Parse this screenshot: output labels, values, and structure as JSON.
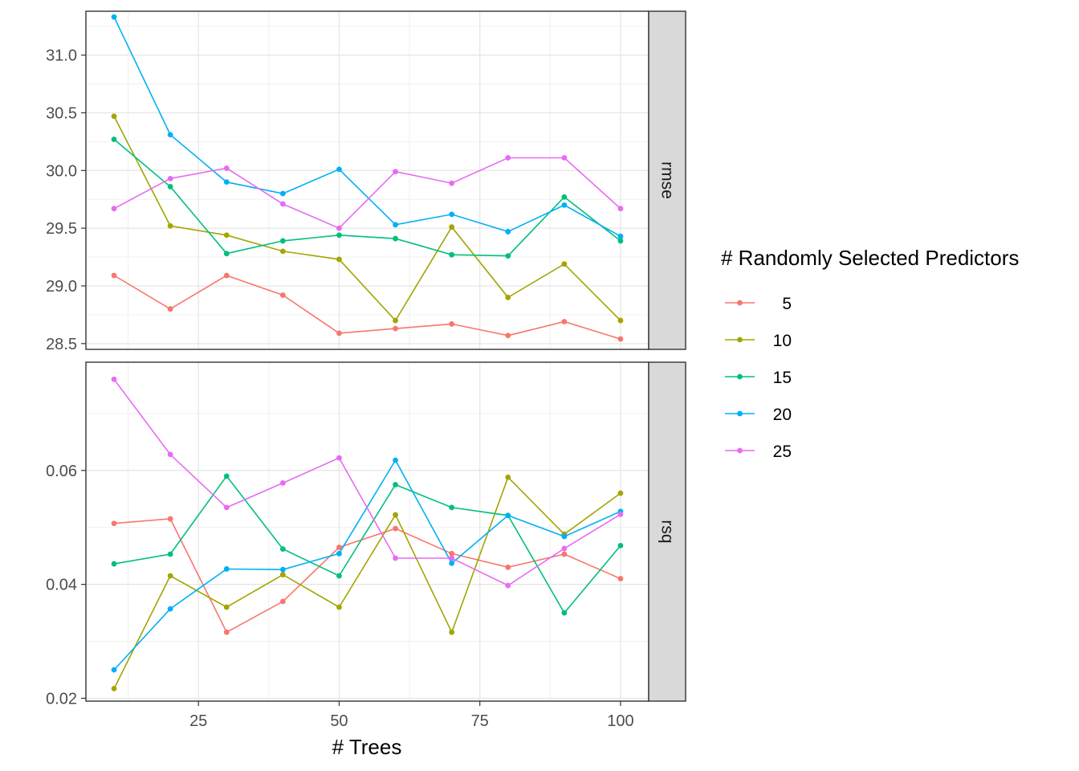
{
  "chart_data": {
    "type": "line",
    "xlabel": "# Trees",
    "legend_title": "# Randomly Selected Predictors",
    "legend_position": "right",
    "grid": true,
    "x": [
      10,
      20,
      30,
      40,
      50,
      60,
      70,
      80,
      90,
      100
    ],
    "x_ticks": [
      25,
      50,
      75,
      100
    ],
    "xlim": [
      5,
      105
    ],
    "series_colors": [
      "#F8766D",
      "#A3A500",
      "#00BF7D",
      "#00B0F6",
      "#E76BF3"
    ],
    "panels": [
      {
        "label": "rmse",
        "ylim": [
          28.45,
          31.38
        ],
        "y_ticks": [
          28.5,
          29.0,
          29.5,
          30.0,
          30.5,
          31.0
        ],
        "y_tick_labels": [
          "28.5",
          "29.0",
          "29.5",
          "30.0",
          "30.5",
          "31.0"
        ],
        "series": [
          {
            "name": "5",
            "values": [
              29.09,
              28.8,
              29.09,
              28.92,
              28.59,
              28.63,
              28.67,
              28.57,
              28.69,
              28.54
            ]
          },
          {
            "name": "10",
            "values": [
              30.47,
              29.52,
              29.44,
              29.3,
              29.23,
              28.7,
              29.51,
              28.9,
              29.19,
              28.7
            ]
          },
          {
            "name": "15",
            "values": [
              30.27,
              29.86,
              29.28,
              29.39,
              29.44,
              29.41,
              29.27,
              29.26,
              29.77,
              29.39
            ]
          },
          {
            "name": "20",
            "values": [
              31.33,
              30.31,
              29.9,
              29.8,
              30.01,
              29.53,
              29.62,
              29.47,
              29.7,
              29.43
            ]
          },
          {
            "name": "25",
            "values": [
              29.67,
              29.93,
              30.02,
              29.71,
              29.5,
              29.99,
              29.89,
              30.11,
              30.11,
              29.67
            ]
          }
        ]
      },
      {
        "label": "rsq",
        "ylim": [
          0.0195,
          0.079
        ],
        "y_ticks": [
          0.02,
          0.04,
          0.06
        ],
        "y_tick_labels": [
          "0.02",
          "0.04",
          "0.06"
        ],
        "series": [
          {
            "name": "5",
            "values": [
              0.0507,
              0.0515,
              0.0316,
              0.037,
              0.0465,
              0.0498,
              0.0454,
              0.043,
              0.0453,
              0.041
            ]
          },
          {
            "name": "10",
            "values": [
              0.0217,
              0.0415,
              0.036,
              0.0417,
              0.036,
              0.0522,
              0.0316,
              0.0588,
              0.0488,
              0.056
            ]
          },
          {
            "name": "15",
            "values": [
              0.0436,
              0.0453,
              0.059,
              0.0462,
              0.0415,
              0.0575,
              0.0535,
              0.0521,
              0.035,
              0.0468
            ]
          },
          {
            "name": "20",
            "values": [
              0.025,
              0.0357,
              0.0427,
              0.0426,
              0.0454,
              0.0618,
              0.0437,
              0.0521,
              0.0484,
              0.0528
            ]
          },
          {
            "name": "25",
            "values": [
              0.076,
              0.0628,
              0.0535,
              0.0578,
              0.0622,
              0.0446,
              0.0446,
              0.0398,
              0.0463,
              0.0523
            ]
          }
        ]
      }
    ],
    "x_tick_labels": [
      "25",
      "50",
      "75",
      "100"
    ]
  }
}
